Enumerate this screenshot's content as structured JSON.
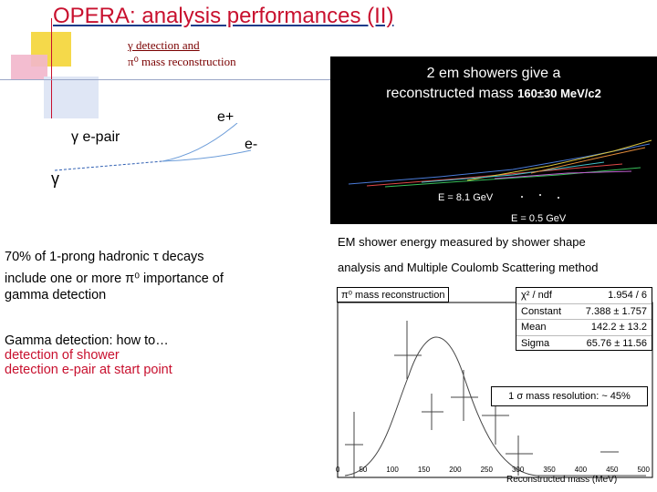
{
  "title": "OPERA: analysis performances (II)",
  "subtitle_line1": "γ detection and",
  "subtitle_line2": "π⁰ mass reconstruction",
  "diagram": {
    "gamma_epair": "γ  e-pair",
    "e_plus": "e+",
    "e_minus": "e-",
    "gamma": "γ"
  },
  "event_display": {
    "caption_line1": "2 em showers give a",
    "caption_line2_pre": "reconstructed mass ",
    "caption_line2_val": "160±30 MeV/c2",
    "energy1": "E = 8.1 GeV",
    "energy2": "E = 0.5 GeV"
  },
  "paragraph": {
    "line1": "70% of 1-prong hadronic τ  decays",
    "line2": "include one or more π⁰  importance of",
    "line3": "gamma detection"
  },
  "gamma_how": "Gamma detection: how to…",
  "bullet1": "detection of shower",
  "bullet2": "detection e-pair at start point",
  "em_text_line1": "EM shower energy measured by shower shape",
  "em_text_line2": "analysis and Multiple Coulomb Scattering method",
  "fit": {
    "header": "π⁰ mass reconstruction",
    "rows": [
      {
        "k": "χ² / ndf",
        "v": "1.954 / 6"
      },
      {
        "k": "Constant",
        "v": "7.388 ± 1.757"
      },
      {
        "k": "Mean",
        "v": "142.2 ± 13.2"
      },
      {
        "k": "Sigma",
        "v": "65.76 ± 11.56"
      }
    ],
    "resolution": "1 σ mass resolution: ~ 45%",
    "xlabel": "Reconstructed mass (MeV)",
    "xticks": [
      "0",
      "50",
      "100",
      "150",
      "200",
      "250",
      "300",
      "350",
      "400",
      "450",
      "500"
    ]
  },
  "colors": {
    "title_red": "#c8102e",
    "accent_yellow": "#f5d94a",
    "accent_blue": "#2f5fb3",
    "accent_pink": "#e07aa0"
  }
}
